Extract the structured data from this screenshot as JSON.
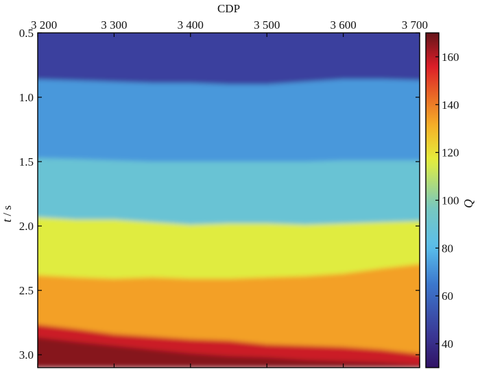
{
  "chart_data": {
    "type": "heatmap",
    "xlabel": "CDP",
    "ylabel_italic": "t",
    "ylabel_rest": " / s",
    "colorbar_label": "Q",
    "x_axis_position": "top",
    "xlim": [
      3200,
      3700
    ],
    "ylim": [
      0.5,
      3.1
    ],
    "y_inverted": true,
    "color_range": [
      30,
      170
    ],
    "colormap": "jet-like",
    "grid": false,
    "x_ticks": [
      {
        "value": 3200,
        "label": "3 200"
      },
      {
        "value": 3300,
        "label": "3 300"
      },
      {
        "value": 3400,
        "label": "3 400"
      },
      {
        "value": 3500,
        "label": "3 500"
      },
      {
        "value": 3600,
        "label": "3 600"
      },
      {
        "value": 3700,
        "label": "3 700"
      }
    ],
    "y_ticks": [
      {
        "value": 0.5,
        "label": "0.5"
      },
      {
        "value": 1.0,
        "label": "1.0"
      },
      {
        "value": 1.5,
        "label": "1.5"
      },
      {
        "value": 2.0,
        "label": "2.0"
      },
      {
        "value": 2.5,
        "label": "2.5"
      },
      {
        "value": 3.0,
        "label": "3.0"
      }
    ],
    "colorbar_ticks": [
      {
        "value": 40,
        "label": "40"
      },
      {
        "value": 60,
        "label": "60"
      },
      {
        "value": 80,
        "label": "80"
      },
      {
        "value": 100,
        "label": "100"
      },
      {
        "value": 120,
        "label": "120"
      },
      {
        "value": 140,
        "label": "140"
      },
      {
        "value": 160,
        "label": "160"
      }
    ],
    "layers": [
      {
        "q": 47,
        "t_bottom": [
          0.86,
          0.87,
          0.88,
          0.89,
          0.89,
          0.9,
          0.9,
          0.88,
          0.86,
          0.86,
          0.87
        ]
      },
      {
        "q": 72,
        "t_bottom": [
          1.47,
          1.48,
          1.49,
          1.5,
          1.5,
          1.5,
          1.5,
          1.5,
          1.49,
          1.49,
          1.49
        ]
      },
      {
        "q": 89,
        "t_bottom": [
          1.93,
          1.95,
          1.95,
          1.97,
          1.99,
          1.98,
          1.98,
          1.99,
          1.98,
          1.97,
          1.96
        ]
      },
      {
        "q": 116,
        "t_bottom": [
          2.38,
          2.4,
          2.41,
          2.4,
          2.41,
          2.41,
          2.4,
          2.39,
          2.37,
          2.33,
          2.29
        ]
      },
      {
        "q": 134,
        "t_bottom": [
          2.76,
          2.8,
          2.84,
          2.86,
          2.88,
          2.89,
          2.92,
          2.93,
          2.94,
          2.96,
          3.0
        ]
      },
      {
        "q": 158,
        "t_bottom": [
          2.86,
          2.9,
          2.93,
          2.96,
          2.99,
          3.01,
          3.02,
          3.04,
          3.05,
          3.06,
          3.08
        ]
      },
      {
        "q": 166,
        "t_bottom": [
          3.1,
          3.1,
          3.1,
          3.1,
          3.1,
          3.1,
          3.1,
          3.1,
          3.1,
          3.1,
          3.1
        ]
      }
    ]
  }
}
